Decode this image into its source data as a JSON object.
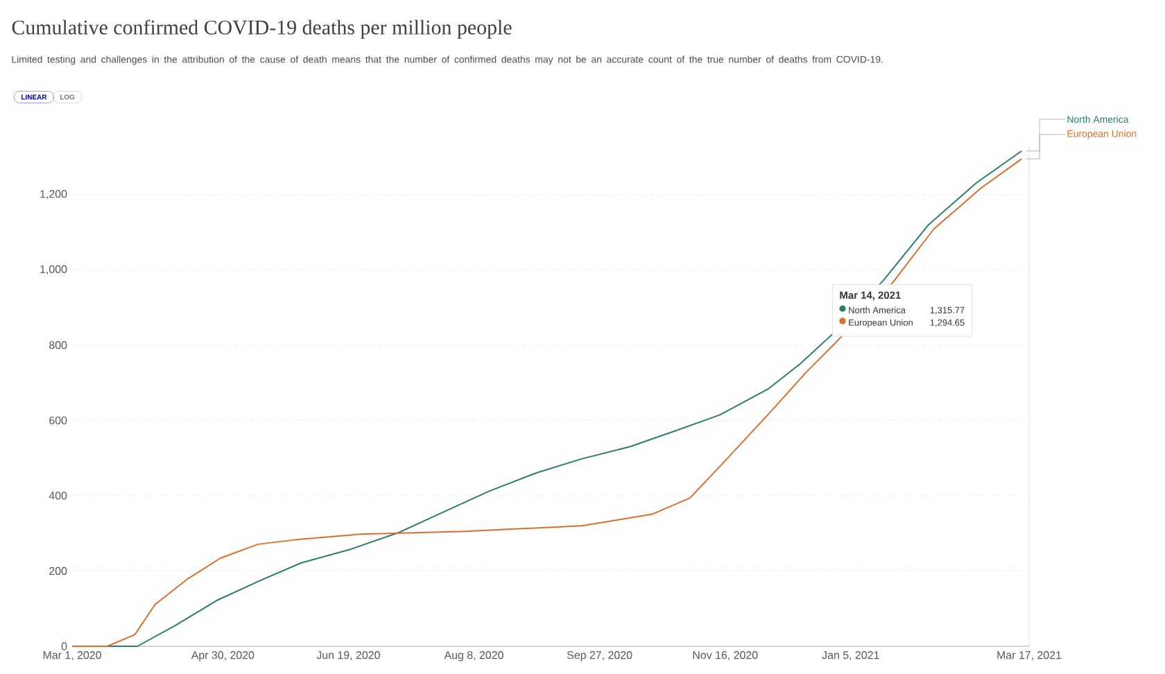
{
  "chart_data": {
    "type": "line",
    "title": "Cumulative confirmed COVID-19 deaths per million people",
    "subtitle": "Limited testing and challenges in the attribution of the cause of death means that the number of confirmed deaths may not be an accurate count of the true number of deaths from COVID-19.",
    "series": [
      {
        "name": "North America",
        "color": "#2a7d6c",
        "x": [
          "2020-03-01",
          "2020-03-27",
          "2020-04-11",
          "2020-04-28",
          "2020-05-14",
          "2020-05-31",
          "2020-06-20",
          "2020-07-09",
          "2020-07-27",
          "2020-08-14",
          "2020-09-02",
          "2020-09-20",
          "2020-10-09",
          "2020-10-27",
          "2020-11-14",
          "2020-12-03",
          "2020-12-16",
          "2020-12-29",
          "2021-01-18",
          "2021-02-05",
          "2021-02-24",
          "2021-03-14"
        ],
        "values": [
          0,
          0,
          55,
          123,
          172,
          221,
          258,
          302,
          357,
          412,
          461,
          498,
          530,
          572,
          615,
          683,
          751,
          831,
          972,
          1120,
          1231,
          1315.77
        ]
      },
      {
        "name": "European Union",
        "color": "#e06c2a",
        "x": [
          "2020-03-01",
          "2020-03-15",
          "2020-03-26",
          "2020-04-03",
          "2020-04-16",
          "2020-04-29",
          "2020-05-14",
          "2020-05-29",
          "2020-06-24",
          "2020-08-03",
          "2020-09-20",
          "2020-10-18",
          "2020-11-02",
          "2020-11-16",
          "2020-12-03",
          "2020-12-18",
          "2020-12-29",
          "2021-01-21",
          "2021-02-07",
          "2021-02-26",
          "2021-03-14"
        ],
        "values": [
          0,
          0,
          31,
          111,
          179,
          234,
          271,
          283,
          298,
          305,
          320,
          351,
          394,
          493,
          615,
          726,
          800,
          960,
          1108,
          1218,
          1294.65
        ]
      }
    ],
    "xlim": [
      "2020-03-01",
      "2021-03-17"
    ],
    "xticks": [
      {
        "value": "2020-03-01",
        "label": "Mar 1, 2020"
      },
      {
        "value": "2020-04-30",
        "label": "Apr 30, 2020"
      },
      {
        "value": "2020-06-19",
        "label": "Jun 19, 2020"
      },
      {
        "value": "2020-08-08",
        "label": "Aug 8, 2020"
      },
      {
        "value": "2020-09-27",
        "label": "Sep 27, 2020"
      },
      {
        "value": "2020-11-16",
        "label": "Nov 16, 2020"
      },
      {
        "value": "2021-01-05",
        "label": "Jan 5, 2021"
      },
      {
        "value": "2021-03-17",
        "label": "Mar 17, 2021"
      }
    ],
    "ylim": [
      0,
      1330
    ],
    "yticks": [
      0,
      {
        "value": 200,
        "label": "200"
      },
      {
        "value": 400,
        "label": "400"
      },
      {
        "value": 600,
        "label": "600"
      },
      {
        "value": 800,
        "label": "800"
      },
      {
        "value": 1000,
        "label": "1,000"
      },
      {
        "value": 1200,
        "label": "1,200"
      }
    ],
    "grid": "y",
    "legend": "right",
    "line_style": "solid",
    "marker": "none",
    "annotations": [
      "LINEAR",
      "LOG",
      "Mar 14, 2021",
      "1,315.77",
      "1,294.65"
    ]
  }
}
